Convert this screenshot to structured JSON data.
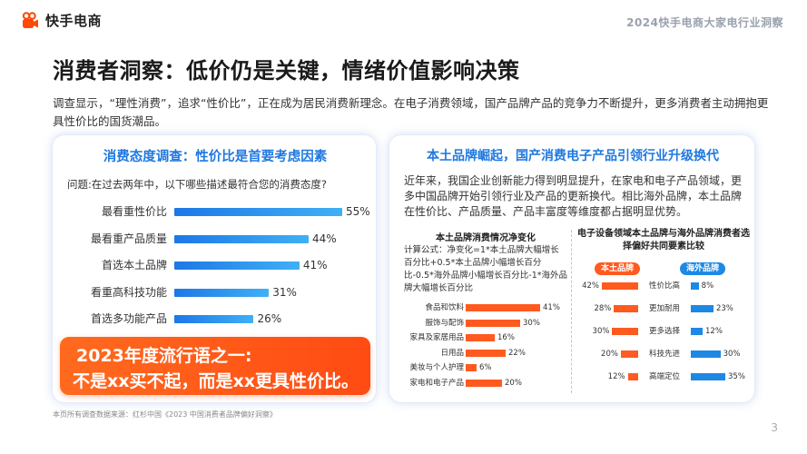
{
  "header": {
    "logo_text": "快手电商",
    "report_title": "2024快手电商大家电行业洞察"
  },
  "page_title": "消费者洞察：低价仍是关键，情绪价值影响决策",
  "intro": "调查显示，“理性消费”，追求“性价比”，正在成为居民消费新理念。在电子消费领域，国产品牌产品的竞争力不断提升，更多消费者主动拥抱更具性价比的国货潮品。",
  "left_panel": {
    "title": "消费态度调查：性价比是首要考虑因素",
    "question": "问题:在过去两年中，以下哪些描述最符合您的消费态度?",
    "slogan_line1": "2023年度流行语之一:",
    "slogan_line2": "不是xx买不起，而是xx更具性价比。"
  },
  "right_panel": {
    "title": "本土品牌崛起，国产消费电子产品引领行业升级换代",
    "description": "近年来，我国企业创新能力得到明显提升，在家电和电子产品领域，更多中国品牌开始引领行业及产品的更新换代。相比海外品牌，本土品牌在性价比、产品质量、产品丰富度等维度都占据明显优势。",
    "left_chart_title": "本土品牌消费情况净变化",
    "formula": "计算公式：净变化=1*本土品牌大幅增长百分比+0.5*本土品牌小幅增长百分比-0.5*海外品牌小幅增长百分比-1*海外品牌大幅增长百分比",
    "right_chart_title": "电子设备领域本土品牌与海外品牌消费者选择偏好共同要素比较",
    "legend_domestic": "本土品牌",
    "legend_foreign": "海外品牌"
  },
  "source": "本页所有调查数据来源：红杉中国《2023 中国消费者品牌偏好洞察》",
  "page_number": "3",
  "colors": {
    "accent_blue": "#1e78e0",
    "accent_orange": "#ff5a1f",
    "foreign_blue": "#1e88e5"
  },
  "chart_data": [
    {
      "type": "bar",
      "orientation": "horizontal",
      "categories": [
        "最看重性价比",
        "最看重产品质量",
        "首选本土品牌",
        "看重高科技功能",
        "首选多功能产品"
      ],
      "values": [
        55,
        44,
        41,
        31,
        26
      ],
      "value_labels": [
        "55%",
        "44%",
        "41%",
        "31%",
        "26%"
      ],
      "unit": "%",
      "title": "",
      "xlim": [
        0,
        60
      ]
    },
    {
      "type": "bar",
      "orientation": "horizontal",
      "title": "本土品牌消费情况净变化",
      "categories": [
        "食品和饮料",
        "服饰与配饰",
        "家具及家居用品",
        "日用品",
        "美妆与个人护理",
        "家电和电子产品"
      ],
      "values": [
        41,
        30,
        16,
        22,
        6,
        20
      ],
      "value_labels": [
        "41%",
        "30%",
        "16%",
        "22%",
        "6%",
        "20%"
      ],
      "unit": "%",
      "xlim": [
        0,
        45
      ]
    },
    {
      "type": "bar",
      "orientation": "horizontal-diverging",
      "title": "电子设备领域本土品牌与海外品牌消费者选择偏好共同要素比较",
      "categories": [
        "性价比高",
        "更加耐用",
        "更多选择",
        "科技先进",
        "高端定位"
      ],
      "series": [
        {
          "name": "本土品牌",
          "values": [
            42,
            28,
            30,
            20,
            12
          ],
          "value_labels": [
            "42%",
            "28%",
            "30%",
            "20%",
            "12%"
          ]
        },
        {
          "name": "海外品牌",
          "values": [
            8,
            23,
            12,
            30,
            35
          ],
          "value_labels": [
            "8%",
            "23%",
            "12%",
            "30%",
            "35%"
          ]
        }
      ],
      "unit": "%",
      "xlim": [
        0,
        45
      ]
    }
  ]
}
